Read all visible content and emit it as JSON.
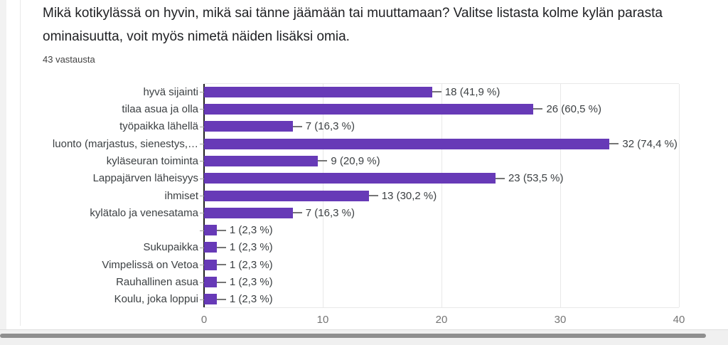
{
  "header": {
    "question_title": "Mikä kotikylässä on hyvin, mikä sai tänne jäämään tai muuttamaan? Valitse listasta kolme kylän parasta ominaisuutta, voit myös nimetä näiden lisäksi omia.",
    "response_count": "43 vastausta"
  },
  "chart_data": {
    "type": "bar",
    "orientation": "horizontal",
    "categories": [
      "hyvä sijainti",
      "tilaa asua ja olla",
      "työpaikka lähellä",
      "luonto (marjastus, sienestys,…",
      "kyläseuran toiminta",
      "Lappajärven läheisyys",
      "ihmiset",
      "kylätalo ja venesatama",
      "",
      "Sukupaikka",
      "Vimpelissä on Vetoa",
      "Rauhallinen asua",
      "Koulu, joka loppui"
    ],
    "values": [
      18,
      26,
      7,
      32,
      9,
      23,
      13,
      7,
      1,
      1,
      1,
      1,
      1
    ],
    "value_labels": [
      "18 (41,9 %)",
      "26 (60,5 %)",
      "7 (16,3 %)",
      "32 (74,4 %)",
      "9 (20,9 %)",
      "23 (53,5 %)",
      "13 (30,2 %)",
      "7 (16,3 %)",
      "1 (2,3 %)",
      "1 (2,3 %)",
      "1 (2,3 %)",
      "1 (2,3 %)",
      "1 (2,3 %)"
    ],
    "xticks": [
      0,
      10,
      20,
      30,
      40
    ],
    "xlim": [
      0,
      40
    ],
    "grid": true,
    "legend": "none",
    "bar_color": "#673ab7",
    "axis_color": "#212121",
    "grid_color": "#e8e8e8",
    "label_color": "#3c4043",
    "tick_label_color": "#757575"
  }
}
